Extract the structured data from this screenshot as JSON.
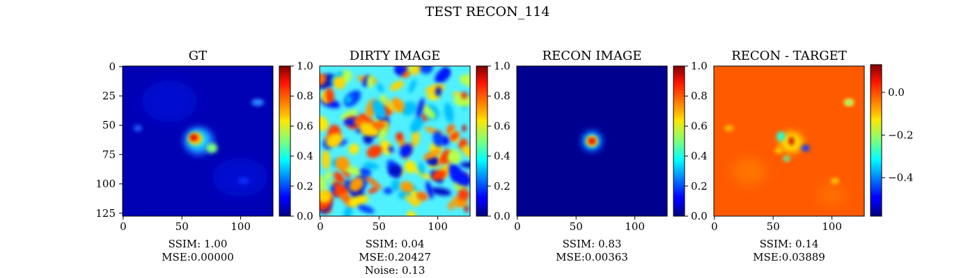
{
  "figure": {
    "suptitle": "TEST RECON_114"
  },
  "chart_data": [
    {
      "type": "heatmap",
      "title": "GT",
      "colormap": "jet",
      "image_size": [
        128,
        128
      ],
      "xticks": [
        0,
        50,
        100
      ],
      "yticks": [
        0,
        25,
        50,
        75,
        100,
        125
      ],
      "colorbar": {
        "range": [
          0.0,
          1.0
        ],
        "ticks": [
          "0.0",
          "0.2",
          "0.4",
          "0.6",
          "0.8",
          "1.0"
        ]
      },
      "caption_lines": [
        "SSIM: 1.00",
        "MSE:0.00000"
      ]
    },
    {
      "type": "heatmap",
      "title": "DIRTY IMAGE",
      "colormap": "jet",
      "image_size": [
        128,
        128
      ],
      "xticks": [
        0,
        50,
        100
      ],
      "colorbar": {
        "range": [
          0.0,
          1.0
        ],
        "ticks": [
          "0.0",
          "0.2",
          "0.4",
          "0.6",
          "0.8",
          "1.0"
        ]
      },
      "caption_lines": [
        "SSIM: 0.04",
        "MSE:0.20427",
        "Noise: 0.13"
      ]
    },
    {
      "type": "heatmap",
      "title": "RECON IMAGE",
      "colormap": "jet",
      "image_size": [
        128,
        128
      ],
      "xticks": [
        0,
        50,
        100
      ],
      "colorbar": {
        "range": [
          0.0,
          1.0
        ],
        "ticks": [
          "0.0",
          "0.2",
          "0.4",
          "0.6",
          "0.8",
          "1.0"
        ]
      },
      "caption_lines": [
        "SSIM: 0.83",
        "MSE:0.00363"
      ]
    },
    {
      "type": "heatmap",
      "title": "RECON - TARGET",
      "colormap": "jet",
      "image_size": [
        128,
        128
      ],
      "xticks": [
        0,
        50,
        100
      ],
      "colorbar": {
        "range": [
          -0.58,
          0.13
        ],
        "ticks": [
          "0.0",
          "−0.2",
          "−0.4"
        ],
        "tick_values": [
          0.0,
          -0.2,
          -0.4
        ]
      },
      "caption_lines": [
        "SSIM: 0.14",
        "MSE:0.03889"
      ]
    }
  ]
}
